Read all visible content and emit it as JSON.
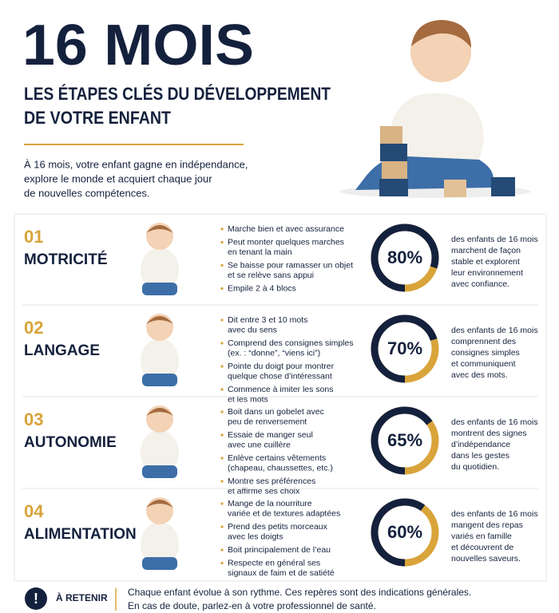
{
  "header": {
    "title": "16 MOIS",
    "subtitle": [
      "LES ÉTAPES CLÉS DU DÉVELOPPEMENT",
      "DE VOTRE ENFANT"
    ],
    "intro": [
      "À 16 mois, votre enfant gagne en indépendance,",
      "explore le monde et acquiert chaque jour",
      "de nouvelles compétences."
    ]
  },
  "sections": [
    {
      "number": "01",
      "label": "MOTRICITÉ",
      "bullets": [
        [
          "Marche bien et avec assurance"
        ],
        [
          "Peut monter quelques marches",
          "en tenant la main"
        ],
        [
          "Se baisse pour ramasser un objet",
          "et se relève sans appui"
        ],
        [
          "Empile 2 à 4 blocs"
        ]
      ],
      "percent": 80,
      "percent_label": "80%",
      "description": [
        "des enfants de 16 mois",
        "marchent de façon",
        "stable et explorent",
        "leur environnement",
        "avec confiance."
      ]
    },
    {
      "number": "02",
      "label": "LANGAGE",
      "bullets": [
        [
          "Dit entre 3 et 10 mots",
          "avec du sens"
        ],
        [
          "Comprend des consignes simples",
          "(ex. : “donne”, “viens ici”)"
        ],
        [
          "Pointe du doigt pour montrer",
          "quelque chose d’intéressant"
        ],
        [
          "Commence à imiter les sons",
          "et les mots"
        ]
      ],
      "percent": 70,
      "percent_label": "70%",
      "description": [
        "des enfants de 16 mois",
        "comprennent des",
        "consignes simples",
        "et communiquent",
        "avec des mots."
      ]
    },
    {
      "number": "03",
      "label": "AUTONOMIE",
      "bullets": [
        [
          "Boit dans un gobelet avec",
          "peu de renversement"
        ],
        [
          "Essaie de manger seul",
          "avec une cuillère"
        ],
        [
          "Enlève certains vêtements",
          "(chapeau, chaussettes, etc.)"
        ],
        [
          "Montre ses préférences",
          "et affirme ses choix"
        ]
      ],
      "percent": 65,
      "percent_label": "65%",
      "description": [
        "des enfants de 16 mois",
        "montrent des signes",
        "d’indépendance",
        "dans les gestes",
        "du quotidien."
      ]
    },
    {
      "number": "04",
      "label": "ALIMENTATION",
      "bullets": [
        [
          "Mange de la nourriture",
          "variée et de textures adaptées"
        ],
        [
          "Prend des petits morceaux",
          "avec les doigts"
        ],
        [
          "Boit principalement de l’eau"
        ],
        [
          "Respecte en général ses",
          "signaux de faim et de satiété"
        ]
      ],
      "percent": 60,
      "percent_label": "60%",
      "description": [
        "des enfants de 16 mois",
        "mangent des repas",
        "variés en famille",
        "et découvrent de",
        "nouvelles saveurs."
      ]
    }
  ],
  "footer": {
    "label": "À RETENIR",
    "text": [
      "Chaque enfant évolue à son rythme. Ces repères sont des indications générales.",
      "En cas de doute, parlez-en à votre professionnel de santé."
    ]
  }
}
